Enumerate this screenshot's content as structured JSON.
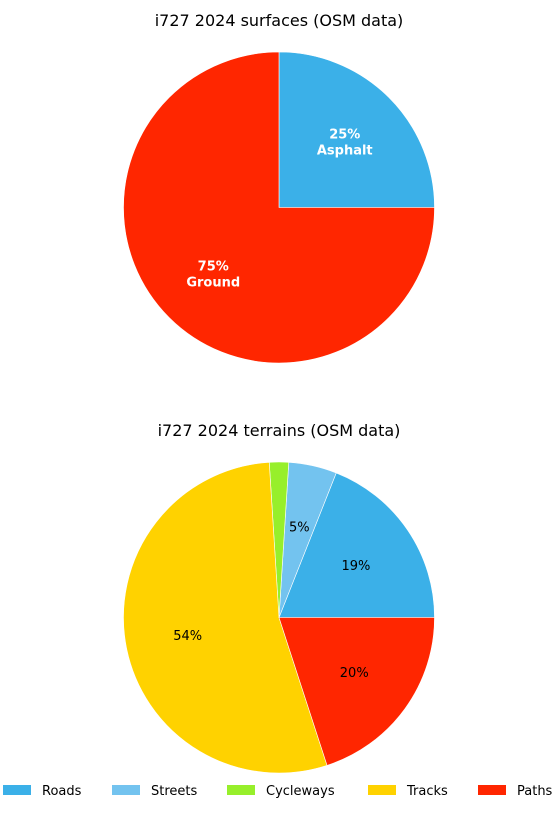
{
  "chart_data": [
    {
      "type": "pie",
      "title": "i727 2024 surfaces (OSM data)",
      "slices": [
        {
          "name": "Asphalt",
          "value": 25,
          "label": "25%\nAsphalt",
          "color": "#3bb0e8"
        },
        {
          "name": "Ground",
          "value": 75,
          "label": "75%\nGround",
          "color": "#ff2600"
        }
      ]
    },
    {
      "type": "pie",
      "title": "i727 2024 terrains (OSM data)",
      "slices": [
        {
          "name": "Roads",
          "value": 19,
          "label": "19%",
          "color": "#3bb0e8"
        },
        {
          "name": "Streets",
          "value": 5,
          "label": "5%",
          "color": "#73c3ef"
        },
        {
          "name": "Cycleways",
          "value": 2,
          "label": "",
          "color": "#97ef2b"
        },
        {
          "name": "Tracks",
          "value": 54,
          "label": "54%",
          "color": "#ffd200"
        },
        {
          "name": "Paths",
          "value": 20,
          "label": "20%",
          "color": "#ff2600"
        }
      ],
      "legend": {
        "placement": "bottom",
        "entries": [
          "Roads",
          "Streets",
          "Cycleways",
          "Tracks",
          "Paths"
        ]
      }
    }
  ]
}
